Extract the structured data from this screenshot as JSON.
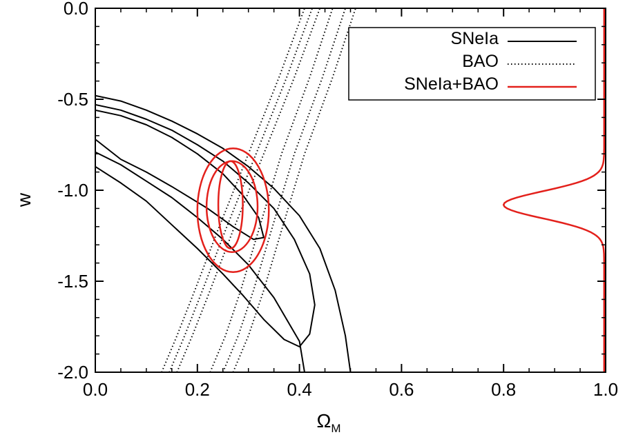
{
  "chart_data": {
    "type": "line",
    "title": "",
    "xlabel": "Ω",
    "xlabel_subscript": "M",
    "ylabel": "w",
    "xlim": [
      0.0,
      1.0
    ],
    "ylim": [
      -2.0,
      0.0
    ],
    "x_ticks": [
      "0.0",
      "0.2",
      "0.4",
      "0.6",
      "0.8",
      "1.0"
    ],
    "y_ticks": [
      "0.0",
      "-0.5",
      "-1.0",
      "-1.5",
      "-2.0"
    ],
    "grid": false,
    "legend_position": "top-right",
    "series": [
      {
        "name": "SNeIa",
        "color": "#000000",
        "style": "solid",
        "contours": [
          [
            [
              0.0,
              -0.48
            ],
            [
              0.05,
              -0.51
            ],
            [
              0.1,
              -0.56
            ],
            [
              0.15,
              -0.62
            ],
            [
              0.2,
              -0.69
            ],
            [
              0.25,
              -0.77
            ],
            [
              0.3,
              -0.87
            ],
            [
              0.35,
              -0.99
            ],
            [
              0.4,
              -1.14
            ],
            [
              0.44,
              -1.32
            ],
            [
              0.47,
              -1.55
            ],
            [
              0.49,
              -1.8
            ],
            [
              0.5,
              -2.0
            ]
          ],
          [
            [
              0.0,
              -0.53
            ],
            [
              0.05,
              -0.56
            ],
            [
              0.1,
              -0.61
            ],
            [
              0.15,
              -0.67
            ],
            [
              0.2,
              -0.75
            ],
            [
              0.25,
              -0.84
            ],
            [
              0.3,
              -0.96
            ],
            [
              0.35,
              -1.1
            ],
            [
              0.39,
              -1.27
            ],
            [
              0.42,
              -1.46
            ],
            [
              0.43,
              -1.63
            ],
            [
              0.42,
              -1.79
            ],
            [
              0.4,
              -1.86
            ],
            [
              0.37,
              -1.82
            ],
            [
              0.33,
              -1.71
            ],
            [
              0.29,
              -1.58
            ],
            [
              0.25,
              -1.46
            ],
            [
              0.2,
              -1.32
            ],
            [
              0.15,
              -1.19
            ],
            [
              0.1,
              -1.06
            ],
            [
              0.05,
              -0.96
            ],
            [
              0.0,
              -0.87
            ]
          ],
          [
            [
              0.0,
              -0.56
            ],
            [
              0.05,
              -0.59
            ],
            [
              0.1,
              -0.64
            ],
            [
              0.15,
              -0.71
            ],
            [
              0.2,
              -0.8
            ],
            [
              0.25,
              -0.91
            ],
            [
              0.29,
              -1.03
            ],
            [
              0.32,
              -1.15
            ],
            [
              0.33,
              -1.26
            ],
            [
              0.31,
              -1.27
            ],
            [
              0.27,
              -1.2
            ],
            [
              0.22,
              -1.1
            ],
            [
              0.15,
              -0.98
            ],
            [
              0.1,
              -0.9
            ],
            [
              0.05,
              -0.83
            ],
            [
              0.0,
              -0.72
            ]
          ],
          [
            [
              0.0,
              -0.79
            ],
            [
              0.05,
              -0.86
            ],
            [
              0.1,
              -0.95
            ],
            [
              0.15,
              -1.04
            ],
            [
              0.2,
              -1.15
            ],
            [
              0.25,
              -1.27
            ],
            [
              0.3,
              -1.41
            ],
            [
              0.35,
              -1.59
            ],
            [
              0.4,
              -1.83
            ],
            [
              0.41,
              -2.0
            ]
          ]
        ]
      },
      {
        "name": "BAO",
        "color": "#000000",
        "style": "dotted",
        "contours": [
          [
            [
              0.13,
              -2.0
            ],
            [
              0.16,
              -1.8
            ],
            [
              0.195,
              -1.55
            ],
            [
              0.24,
              -1.22
            ],
            [
              0.3,
              -0.8
            ],
            [
              0.36,
              -0.38
            ],
            [
              0.41,
              0.0
            ]
          ],
          [
            [
              0.145,
              -2.0
            ],
            [
              0.175,
              -1.8
            ],
            [
              0.21,
              -1.55
            ],
            [
              0.255,
              -1.22
            ],
            [
              0.315,
              -0.8
            ],
            [
              0.375,
              -0.38
            ],
            [
              0.425,
              0.0
            ]
          ],
          [
            [
              0.16,
              -2.0
            ],
            [
              0.19,
              -1.8
            ],
            [
              0.225,
              -1.55
            ],
            [
              0.27,
              -1.22
            ],
            [
              0.33,
              -0.8
            ],
            [
              0.39,
              -0.38
            ],
            [
              0.44,
              0.0
            ]
          ],
          [
            [
              0.225,
              -2.0
            ],
            [
              0.255,
              -1.8
            ],
            [
              0.285,
              -1.55
            ],
            [
              0.32,
              -1.22
            ],
            [
              0.365,
              -0.8
            ],
            [
              0.42,
              -0.38
            ],
            [
              0.465,
              0.0
            ]
          ],
          [
            [
              0.25,
              -2.0
            ],
            [
              0.28,
              -1.8
            ],
            [
              0.31,
              -1.55
            ],
            [
              0.345,
              -1.22
            ],
            [
              0.39,
              -0.8
            ],
            [
              0.445,
              -0.38
            ],
            [
              0.49,
              0.0
            ]
          ],
          [
            [
              0.27,
              -2.0
            ],
            [
              0.3,
              -1.8
            ],
            [
              0.33,
              -1.55
            ],
            [
              0.365,
              -1.22
            ],
            [
              0.41,
              -0.8
            ],
            [
              0.465,
              -0.38
            ],
            [
              0.51,
              0.0
            ]
          ]
        ]
      },
      {
        "name": "SNeIa+BAO",
        "color": "#e3201b",
        "style": "solid",
        "ellipses": [
          {
            "cx": 0.265,
            "cy": -1.08,
            "rx": 0.024,
            "ry": 0.24
          },
          {
            "cx": 0.268,
            "cy": -1.09,
            "rx": 0.05,
            "ry": 0.25
          },
          {
            "cx": 0.27,
            "cy": -1.11,
            "rx": 0.07,
            "ry": 0.34
          }
        ],
        "marginal_w": {
          "baseline_x": 0.997,
          "peak_x": 0.8,
          "peak_w": -1.08,
          "width_w": 0.075
        }
      }
    ]
  }
}
